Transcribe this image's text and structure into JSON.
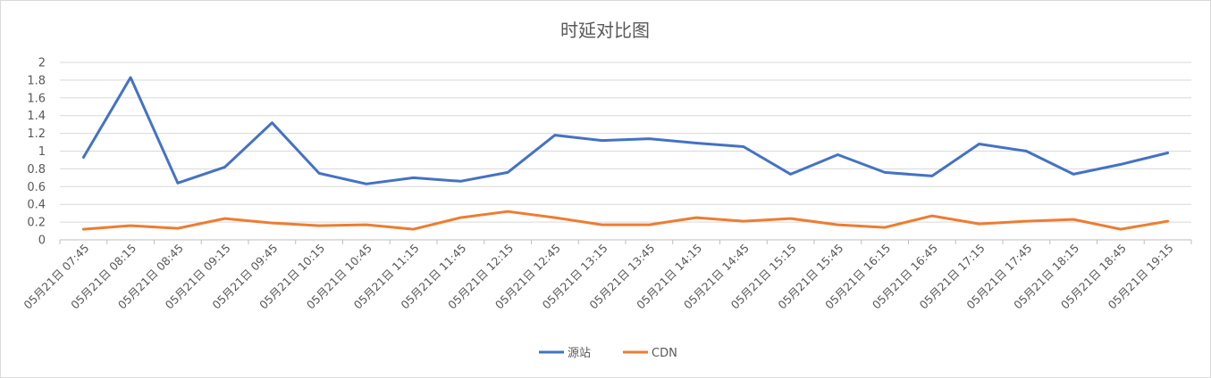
{
  "chart_data": {
    "type": "line",
    "title": "时延对比图",
    "categories": [
      "05月21日 07:45",
      "05月21日 08:15",
      "05月21日 08:45",
      "05月21日 09:15",
      "05月21日 09:45",
      "05月21日 10:15",
      "05月21日 10:45",
      "05月21日 11:15",
      "05月21日 11:45",
      "05月21日 12:15",
      "05月21日 12:45",
      "05月21日 13:15",
      "05月21日 13:45",
      "05月21日 14:15",
      "05月21日 14:45",
      "05月21日 15:15",
      "05月21日 15:45",
      "05月21日 16:15",
      "05月21日 16:45",
      "05月21日 17:15",
      "05月21日 17:45",
      "05月21日 18:15",
      "05月21日 18:45",
      "05月21日 19:15"
    ],
    "series": [
      {
        "name": "源站",
        "color": "#4472c4",
        "values": [
          0.93,
          1.83,
          0.64,
          0.82,
          1.32,
          0.75,
          0.63,
          0.7,
          0.66,
          0.76,
          1.18,
          1.12,
          1.14,
          1.09,
          1.05,
          0.74,
          0.96,
          0.76,
          0.72,
          1.08,
          1.0,
          0.74,
          0.85,
          0.98
        ]
      },
      {
        "name": "CDN",
        "color": "#ed7d31",
        "values": [
          0.12,
          0.16,
          0.13,
          0.24,
          0.19,
          0.16,
          0.17,
          0.12,
          0.25,
          0.32,
          0.25,
          0.17,
          0.17,
          0.25,
          0.21,
          0.24,
          0.17,
          0.14,
          0.27,
          0.18,
          0.21,
          0.23,
          0.12,
          0.21
        ]
      }
    ],
    "yticks": [
      "0",
      "0.2",
      "0.4",
      "0.6",
      "0.8",
      "1",
      "1.2",
      "1.4",
      "1.6",
      "1.8",
      "2"
    ],
    "ylim": [
      0,
      2
    ],
    "grid": true,
    "legend": "bottom-center"
  }
}
